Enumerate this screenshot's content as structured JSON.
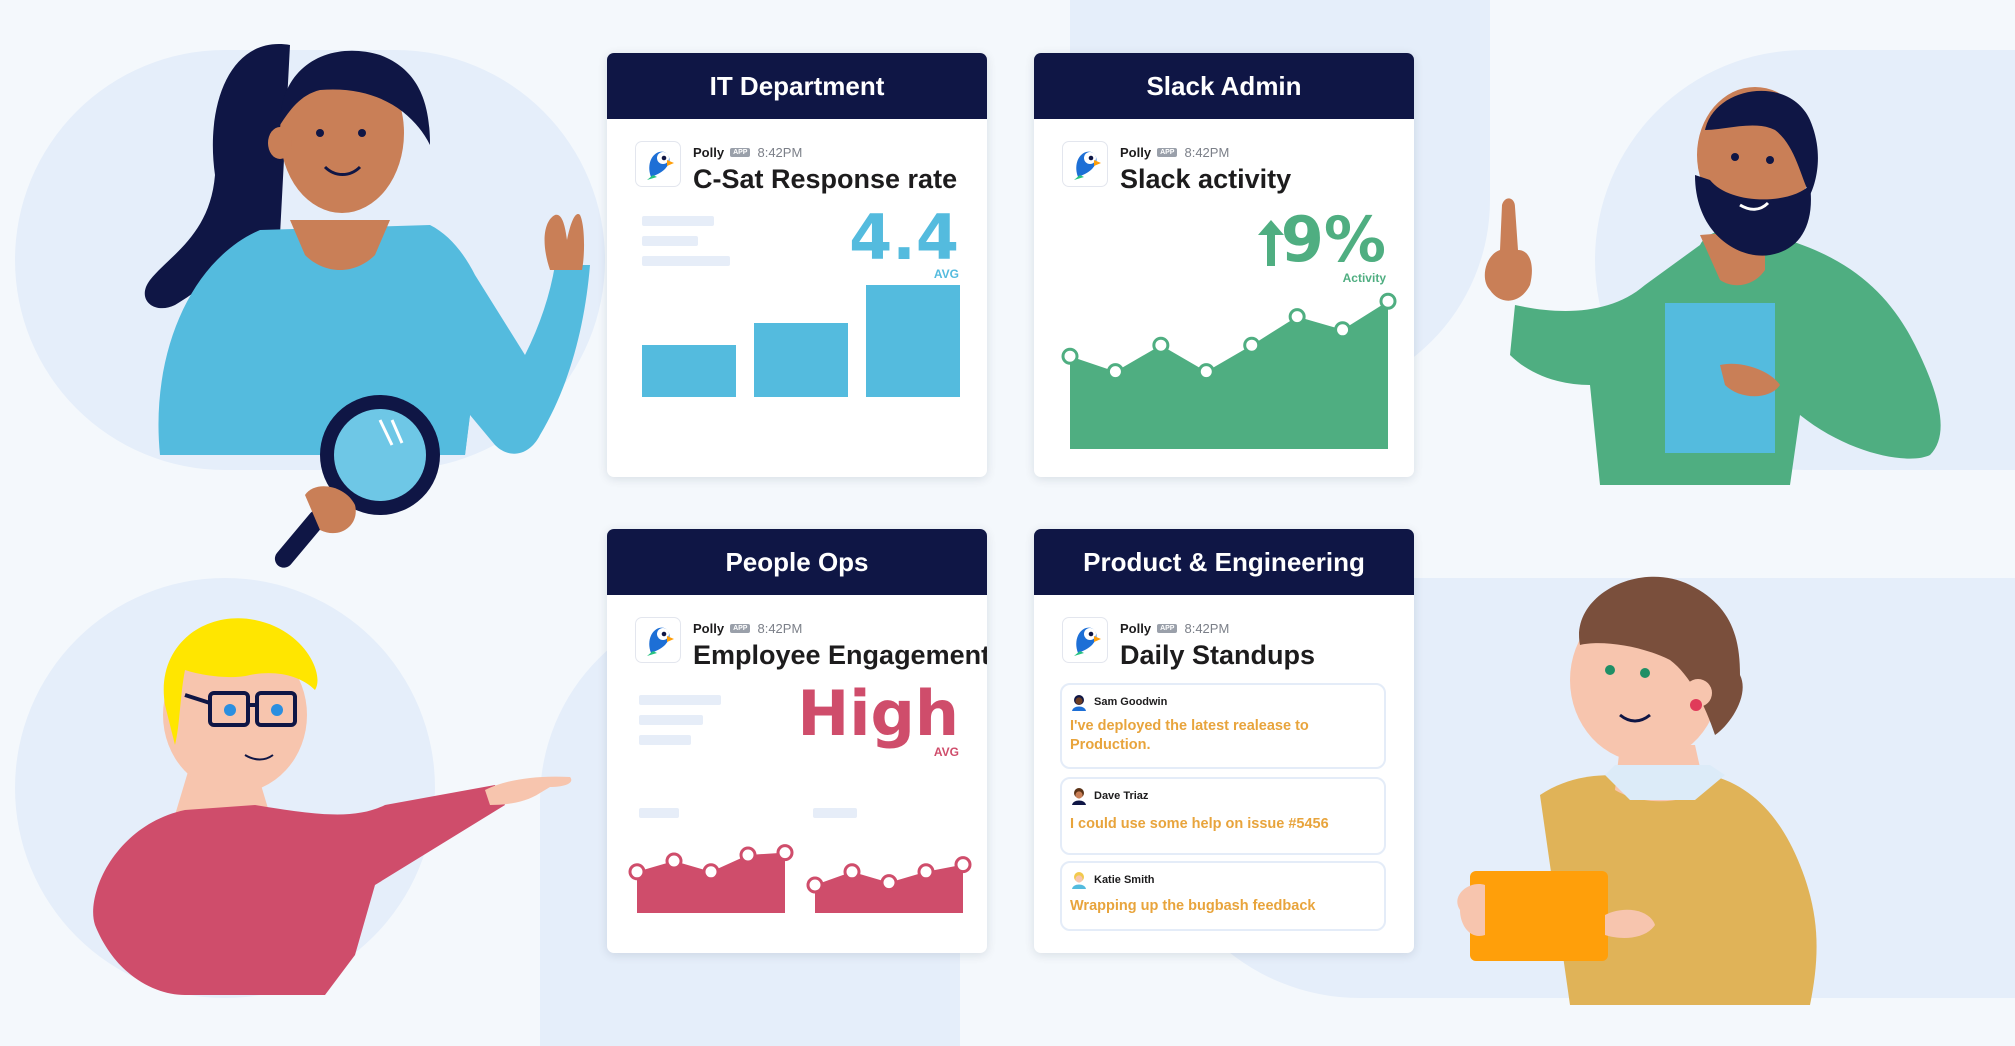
{
  "colors": {
    "navy": "#0f1645",
    "blue_bar": "#54bbde",
    "green": "#4fae81",
    "crimson": "#cf4d6b",
    "orange_text": "#e8a43c",
    "skeleton": "#e6edf8"
  },
  "cards": {
    "it": {
      "header": "IT Department",
      "app": "Polly",
      "badge": "APP",
      "time": "8:42PM",
      "title": "C-Sat Response rate",
      "value": "4.4",
      "value_label": "AVG",
      "bars": [
        0.46,
        0.66,
        1.0
      ]
    },
    "slack": {
      "header": "Slack Admin",
      "app": "Polly",
      "badge": "APP",
      "time": "8:42PM",
      "title": "Slack activity",
      "value": "9%",
      "value_label": "Activity",
      "trend_icon": "arrow-up-icon",
      "points": [
        0.48,
        0.34,
        0.58,
        0.34,
        0.58,
        0.84,
        0.72,
        0.98
      ]
    },
    "people": {
      "header": "People Ops",
      "app": "Polly",
      "badge": "APP",
      "time": "8:42PM",
      "title": "Employee Engagement",
      "value": "High",
      "value_label": "AVG",
      "points_left": [
        0.52,
        0.7,
        0.52,
        0.8,
        0.84
      ],
      "points_right": [
        0.3,
        0.52,
        0.34,
        0.52,
        0.64
      ]
    },
    "product": {
      "header": "Product & Engineering",
      "app": "Polly",
      "badge": "APP",
      "time": "8:42PM",
      "title": "Daily Standups",
      "messages": [
        {
          "name": "Sam Goodwin",
          "text": "I've deployed the latest realease to Production."
        },
        {
          "name": "Dave Triaz",
          "text": "I could use some help on issue #5456"
        },
        {
          "name": "Katie Smith",
          "text": "Wrapping up the bugbash feedback"
        }
      ]
    }
  }
}
